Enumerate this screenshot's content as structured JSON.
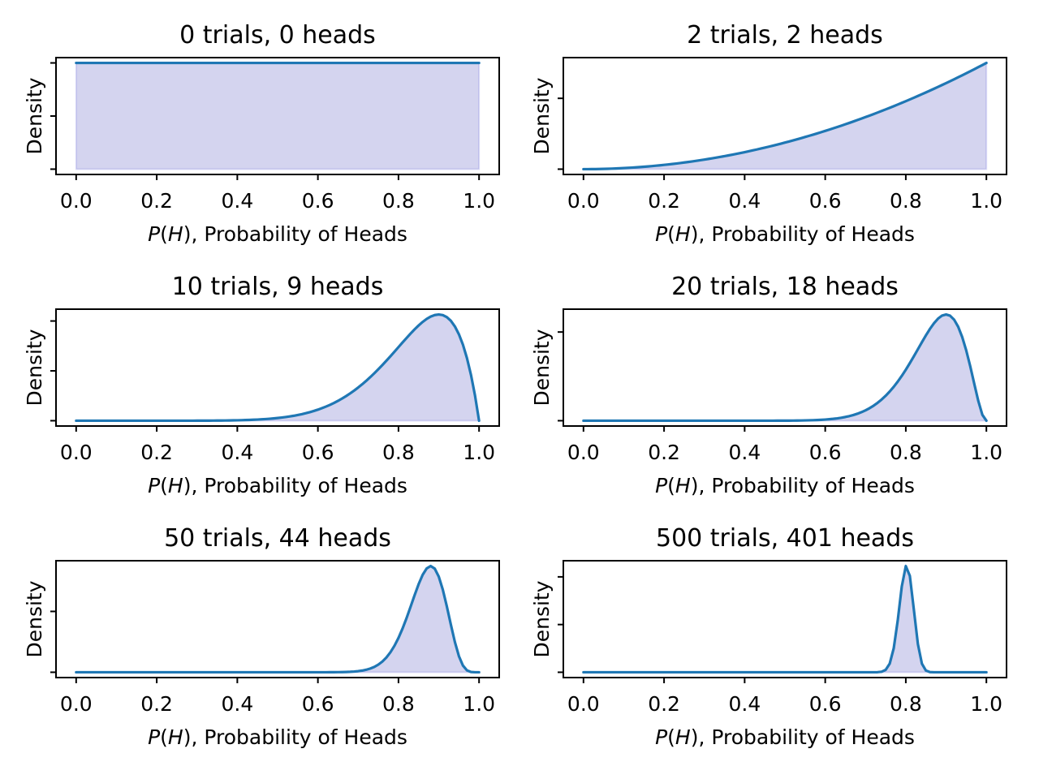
{
  "chart_data": [
    {
      "type": "area",
      "title": "0 trials, 0 heads",
      "trials": 0,
      "heads": 0,
      "xlabel_var": "P",
      "xlabel_arg": "H",
      "xlabel_rest": ", Probability of Heads",
      "ylabel": "Density",
      "x_ticks": [
        "0.0",
        "0.2",
        "0.4",
        "0.6",
        "0.8",
        "1.0"
      ],
      "xlim": [
        -0.05,
        1.05
      ],
      "grid": false
    },
    {
      "type": "area",
      "title": "2 trials, 2 heads",
      "trials": 2,
      "heads": 2,
      "xlabel_var": "P",
      "xlabel_arg": "H",
      "xlabel_rest": ", Probability of Heads",
      "ylabel": "Density",
      "x_ticks": [
        "0.0",
        "0.2",
        "0.4",
        "0.6",
        "0.8",
        "1.0"
      ],
      "xlim": [
        -0.05,
        1.05
      ],
      "grid": false
    },
    {
      "type": "area",
      "title": "10 trials, 9 heads",
      "trials": 10,
      "heads": 9,
      "xlabel_var": "P",
      "xlabel_arg": "H",
      "xlabel_rest": ", Probability of Heads",
      "ylabel": "Density",
      "x_ticks": [
        "0.0",
        "0.2",
        "0.4",
        "0.6",
        "0.8",
        "1.0"
      ],
      "xlim": [
        -0.05,
        1.05
      ],
      "grid": false
    },
    {
      "type": "area",
      "title": "20 trials, 18 heads",
      "trials": 20,
      "heads": 18,
      "xlabel_var": "P",
      "xlabel_arg": "H",
      "xlabel_rest": ", Probability of Heads",
      "ylabel": "Density",
      "x_ticks": [
        "0.0",
        "0.2",
        "0.4",
        "0.6",
        "0.8",
        "1.0"
      ],
      "xlim": [
        -0.05,
        1.05
      ],
      "grid": false
    },
    {
      "type": "area",
      "title": "50 trials, 44 heads",
      "trials": 50,
      "heads": 44,
      "xlabel_var": "P",
      "xlabel_arg": "H",
      "xlabel_rest": ", Probability of Heads",
      "ylabel": "Density",
      "x_ticks": [
        "0.0",
        "0.2",
        "0.4",
        "0.6",
        "0.8",
        "1.0"
      ],
      "xlim": [
        -0.05,
        1.05
      ],
      "grid": false
    },
    {
      "type": "area",
      "title": "500 trials, 401 heads",
      "trials": 500,
      "heads": 401,
      "xlabel_var": "P",
      "xlabel_arg": "H",
      "xlabel_rest": ", Probability of Heads",
      "ylabel": "Density",
      "x_ticks": [
        "0.0",
        "0.2",
        "0.4",
        "0.6",
        "0.8",
        "1.0"
      ],
      "xlim": [
        -0.05,
        1.05
      ],
      "grid": false
    }
  ],
  "colors": {
    "line": "#1f77b4",
    "fill": "#0000a0"
  }
}
